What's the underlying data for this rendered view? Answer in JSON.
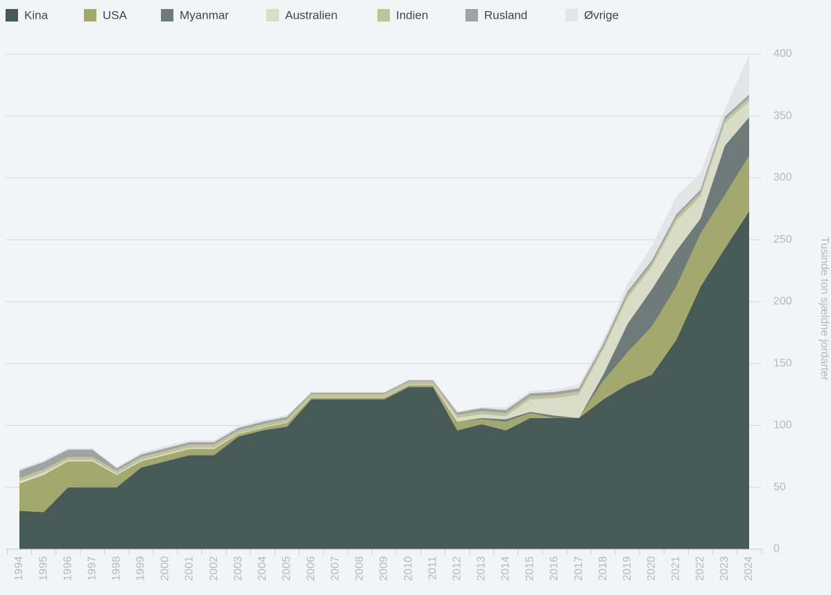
{
  "chart_data": {
    "type": "stacked_area",
    "y_axis_label": "Tusinde ton sjældne jordarter",
    "categories": [
      "1994",
      "1995",
      "1996",
      "1997",
      "1998",
      "1999",
      "2000",
      "2001",
      "2002",
      "2003",
      "2004",
      "2005",
      "2006",
      "2007",
      "2008",
      "2009",
      "2010",
      "2011",
      "2012",
      "2013",
      "2014",
      "2015",
      "2016",
      "2017",
      "2018",
      "2019",
      "2020",
      "2021",
      "2022",
      "2023",
      "2024"
    ],
    "series": [
      {
        "name": "Kina",
        "color": "#475a56",
        "values": [
          31,
          30,
          50,
          50,
          50,
          66,
          71,
          76,
          76,
          91,
          96,
          99,
          121,
          121,
          121,
          121,
          131,
          131,
          96,
          101,
          96,
          106,
          106,
          106,
          121,
          133,
          141,
          169,
          212,
          243,
          273
        ]
      },
      {
        "name": "USA",
        "color": "#a2a86e",
        "values": [
          22,
          30,
          21,
          21,
          10,
          5,
          5,
          5,
          5,
          2,
          2,
          3,
          1.5,
          1.5,
          1.5,
          1.5,
          1.5,
          1.5,
          7,
          4,
          7,
          4,
          0,
          0,
          15,
          26,
          39,
          43,
          43,
          43,
          45
        ]
      },
      {
        "name": "Myanmar",
        "color": "#6f7b78",
        "values": [
          0,
          0,
          0,
          0,
          0,
          0,
          0,
          0,
          0,
          0,
          0,
          0,
          0,
          0,
          0,
          0,
          0,
          0,
          0,
          1,
          2,
          1,
          2,
          0,
          5,
          23,
          30,
          29,
          12,
          40,
          31
        ]
      },
      {
        "name": "Australien",
        "color": "#d9dcc6",
        "values": [
          2,
          2,
          1,
          1,
          1,
          1,
          1,
          1,
          1,
          0.5,
          0.5,
          0.5,
          0.5,
          0.5,
          0.5,
          0.5,
          0.5,
          0.5,
          3,
          3,
          2.5,
          10,
          14,
          19,
          20,
          21,
          18,
          24,
          18,
          18,
          13
        ]
      },
      {
        "name": "Indien",
        "color": "#c0c29a",
        "values": [
          2.5,
          2.5,
          2.5,
          2.5,
          2.5,
          2.5,
          2.5,
          2.5,
          2.5,
          2.5,
          2.5,
          2.5,
          2.5,
          2.5,
          2.5,
          2.5,
          2.5,
          2.5,
          2.5,
          2.5,
          2.5,
          2.5,
          2.5,
          2.5,
          2.5,
          2.7,
          2.7,
          2.9,
          2.9,
          2.9,
          2.9
        ]
      },
      {
        "name": "Rusland",
        "color": "#a0a3a3",
        "values": [
          6,
          6,
          6,
          6,
          2,
          2,
          2,
          2,
          2,
          2,
          2,
          2,
          1,
          1,
          1,
          1,
          1,
          1,
          2,
          2.5,
          2.5,
          2.5,
          2.5,
          2.6,
          2.6,
          2.7,
          2.7,
          2.6,
          2.6,
          2.6,
          2.5
        ]
      },
      {
        "name": "Øvrige",
        "color": "#e2e5e6",
        "values": [
          1.5,
          1.5,
          1,
          1,
          1,
          1.5,
          2,
          1.5,
          1.5,
          1.5,
          1.5,
          1.5,
          0.5,
          0.5,
          0.5,
          0.5,
          0.5,
          0.5,
          1,
          1,
          2,
          2,
          2,
          3,
          3,
          6,
          12,
          14,
          14,
          6,
          32
        ]
      }
    ],
    "ylim": [
      0,
      400
    ],
    "yticks": [
      0,
      50,
      100,
      150,
      200,
      250,
      300,
      350,
      400
    ],
    "grid": true,
    "legend": "top"
  }
}
